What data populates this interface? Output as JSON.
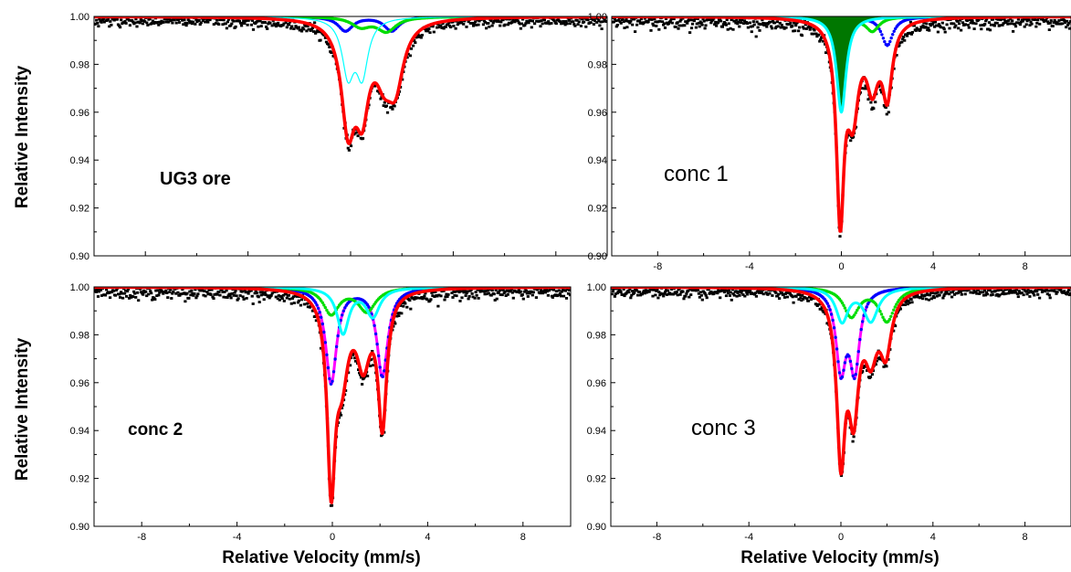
{
  "figure": {
    "ylabel_top": "Relative Intensity",
    "ylabel_bottom": "Relative Intensity",
    "xlabel_left": "Relative Velocity (mm/s)",
    "xlabel_right": "Relative Velocity (mm/s)"
  },
  "colors": {
    "data": "#000000",
    "fit_total": "#ff0000",
    "blue": "#0000ff",
    "green": "#00dd00",
    "cyan": "#00ffff",
    "magenta": "#ff00ff",
    "darkgreen": "#007700"
  },
  "chart_data": [
    {
      "type": "line",
      "label": "UG3 ore",
      "xlim": [
        -10,
        10
      ],
      "ylim": [
        0.9,
        1.0
      ],
      "xticks": [
        "-8",
        "-4",
        "0",
        "4",
        "8"
      ],
      "yticks": [
        "0.90",
        "0.92",
        "0.94",
        "0.96",
        "0.98",
        "1.00"
      ],
      "noise": 0.0018,
      "x_tick_labels_shown": false,
      "series": [
        {
          "key": "blue",
          "style": "dots",
          "lines": [
            {
              "center": -0.2,
              "depth": 0.006,
              "width": 0.35
            },
            {
              "center": 1.6,
              "depth": 0.006,
              "width": 0.35
            }
          ]
        },
        {
          "key": "green",
          "style": "dots",
          "lines": [
            {
              "center": 0.4,
              "depth": 0.004,
              "width": 0.45
            },
            {
              "center": 1.4,
              "depth": 0.006,
              "width": 0.45
            }
          ]
        },
        {
          "key": "cyan",
          "style": "thin",
          "lines": [
            {
              "center": -0.1,
              "depth": 0.023,
              "width": 0.28
            },
            {
              "center": 0.45,
              "depth": 0.023,
              "width": 0.28
            }
          ]
        },
        {
          "key": "fit_total",
          "style": "thick",
          "lines": [
            {
              "center": -0.1,
              "depth": 0.042,
              "width": 0.32
            },
            {
              "center": 0.45,
              "depth": 0.033,
              "width": 0.32
            },
            {
              "center": 1.3,
              "depth": 0.018,
              "width": 0.4
            },
            {
              "center": 1.75,
              "depth": 0.024,
              "width": 0.38
            }
          ]
        }
      ]
    },
    {
      "type": "line",
      "label": "conc 1",
      "xlim": [
        -10,
        10
      ],
      "ylim": [
        0.9,
        1.0
      ],
      "xticks": [
        "-8",
        "-4",
        "0",
        "4",
        "8"
      ],
      "yticks": [
        "0.90",
        "0.92",
        "0.94",
        "0.96",
        "0.98",
        "1.00"
      ],
      "noise": 0.0022,
      "x_tick_labels_shown": true,
      "series": [
        {
          "key": "blue",
          "style": "dots",
          "lines": [
            {
              "center": -0.05,
              "depth": 0.006,
              "width": 0.3
            },
            {
              "center": 2.0,
              "depth": 0.012,
              "width": 0.3
            }
          ]
        },
        {
          "key": "green",
          "style": "dots",
          "lines": [
            {
              "center": 0.4,
              "depth": 0.003,
              "width": 0.35
            },
            {
              "center": 1.35,
              "depth": 0.006,
              "width": 0.35
            }
          ]
        },
        {
          "key": "darkgreen",
          "style": "fill",
          "lines": [
            {
              "center": 0.0,
              "depth": 0.04,
              "width": 0.25
            }
          ]
        },
        {
          "key": "cyan",
          "style": "thick",
          "lines": [
            {
              "center": 0.0,
              "depth": 0.04,
              "width": 0.25
            }
          ]
        },
        {
          "key": "fit_total",
          "style": "thick",
          "lines": [
            {
              "center": -0.05,
              "depth": 0.08,
              "width": 0.2
            },
            {
              "center": 0.5,
              "depth": 0.036,
              "width": 0.3
            },
            {
              "center": 1.35,
              "depth": 0.025,
              "width": 0.32
            },
            {
              "center": 2.0,
              "depth": 0.03,
              "width": 0.26
            }
          ]
        }
      ]
    },
    {
      "type": "line",
      "label": "conc 2",
      "xlim": [
        -10,
        10
      ],
      "ylim": [
        0.9,
        1.0
      ],
      "xticks": [
        "-8",
        "-4",
        "0",
        "4",
        "8"
      ],
      "yticks": [
        "0.90",
        "0.92",
        "0.94",
        "0.96",
        "0.98",
        "1.00"
      ],
      "noise": 0.0022,
      "x_tick_labels_shown": true,
      "series": [
        {
          "key": "magenta",
          "style": "thick",
          "lines": [
            {
              "center": -0.05,
              "depth": 0.04,
              "width": 0.28
            },
            {
              "center": 2.1,
              "depth": 0.037,
              "width": 0.28
            }
          ]
        },
        {
          "key": "blue",
          "style": "dots",
          "lines": [
            {
              "center": -0.05,
              "depth": 0.04,
              "width": 0.28
            },
            {
              "center": 2.1,
              "depth": 0.037,
              "width": 0.28
            }
          ]
        },
        {
          "key": "green",
          "style": "dots",
          "lines": [
            {
              "center": -0.05,
              "depth": 0.011,
              "width": 0.4
            },
            {
              "center": 1.45,
              "depth": 0.01,
              "width": 0.45
            }
          ]
        },
        {
          "key": "cyan",
          "style": "thick",
          "lines": [
            {
              "center": 0.45,
              "depth": 0.019,
              "width": 0.3
            },
            {
              "center": 1.7,
              "depth": 0.012,
              "width": 0.35
            }
          ]
        },
        {
          "key": "fit_total",
          "style": "thick",
          "lines": [
            {
              "center": -0.05,
              "depth": 0.077,
              "width": 0.2
            },
            {
              "center": 0.4,
              "depth": 0.031,
              "width": 0.33
            },
            {
              "center": 1.3,
              "depth": 0.028,
              "width": 0.35
            },
            {
              "center": 2.1,
              "depth": 0.055,
              "width": 0.22
            }
          ]
        }
      ]
    },
    {
      "type": "line",
      "label": "conc 3",
      "xlim": [
        -10,
        10
      ],
      "ylim": [
        0.9,
        1.0
      ],
      "xticks": [
        "-8",
        "-4",
        "0",
        "4",
        "8"
      ],
      "yticks": [
        "0.90",
        "0.92",
        "0.94",
        "0.96",
        "0.98",
        "1.00"
      ],
      "noise": 0.0018,
      "x_tick_labels_shown": true,
      "series": [
        {
          "key": "magenta",
          "style": "thick",
          "lines": [
            {
              "center": 0.0,
              "depth": 0.033,
              "width": 0.26
            },
            {
              "center": 0.6,
              "depth": 0.033,
              "width": 0.26
            }
          ]
        },
        {
          "key": "blue",
          "style": "dots",
          "lines": [
            {
              "center": 0.0,
              "depth": 0.033,
              "width": 0.26
            },
            {
              "center": 0.6,
              "depth": 0.033,
              "width": 0.26
            }
          ]
        },
        {
          "key": "green",
          "style": "dots",
          "lines": [
            {
              "center": 0.45,
              "depth": 0.012,
              "width": 0.4
            },
            {
              "center": 2.0,
              "depth": 0.014,
              "width": 0.4
            }
          ]
        },
        {
          "key": "cyan",
          "style": "thick",
          "lines": [
            {
              "center": 0.05,
              "depth": 0.014,
              "width": 0.32
            },
            {
              "center": 1.3,
              "depth": 0.014,
              "width": 0.38
            }
          ]
        },
        {
          "key": "fit_total",
          "style": "thick",
          "lines": [
            {
              "center": 0.0,
              "depth": 0.067,
              "width": 0.22
            },
            {
              "center": 0.55,
              "depth": 0.047,
              "width": 0.27
            },
            {
              "center": 1.3,
              "depth": 0.024,
              "width": 0.33
            },
            {
              "center": 1.95,
              "depth": 0.024,
              "width": 0.3
            }
          ]
        }
      ]
    }
  ]
}
